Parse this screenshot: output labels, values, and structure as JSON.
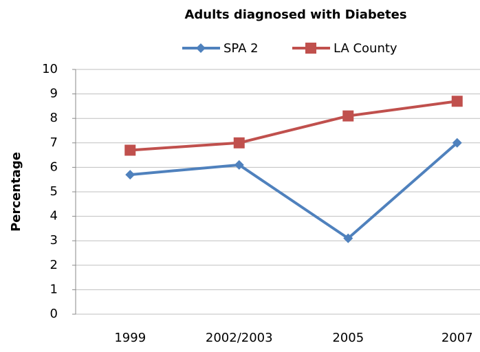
{
  "chart_data": {
    "type": "line",
    "title": "Adults diagnosed with Diabetes",
    "y_label": "Percentage",
    "categories": [
      "1999",
      "2002/2003",
      "2005",
      "2007"
    ],
    "series": [
      {
        "name": "SPA 2",
        "color": "#4f81bd",
        "marker": "diamond",
        "values": [
          5.7,
          6.1,
          3.1,
          7.0
        ]
      },
      {
        "name": "LA County",
        "color": "#c0504d",
        "marker": "square",
        "values": [
          6.7,
          7.0,
          8.1,
          8.7
        ]
      }
    ],
    "ylim": [
      0,
      10
    ],
    "yticks": [
      0,
      1,
      2,
      3,
      4,
      5,
      6,
      7,
      8,
      9,
      10
    ],
    "grid": true,
    "legend": "top"
  }
}
